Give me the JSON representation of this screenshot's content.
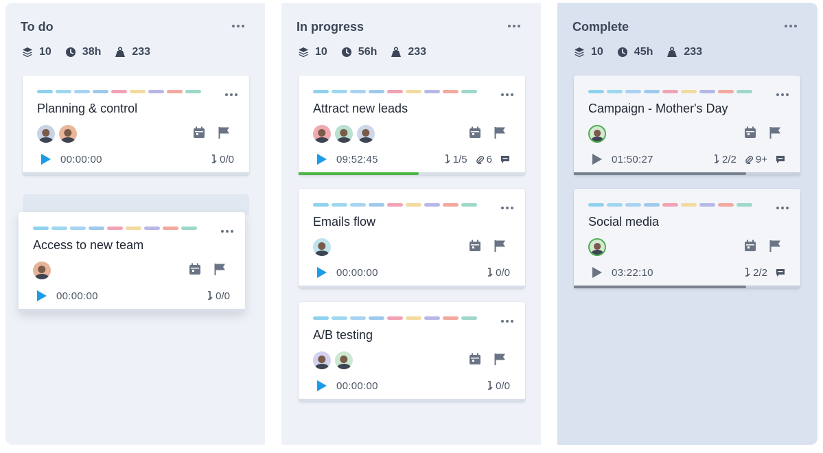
{
  "colors": {
    "play_active": "#1e9be8",
    "play_inactive": "#6b7280",
    "progress_green": "#4cb648",
    "progress_gray": "#7a8291"
  },
  "icons": {
    "stack": "layers-icon",
    "clock": "clock-icon",
    "weight": "weight-icon",
    "calendar": "calendar-icon",
    "flag": "flag-icon",
    "subtasks": "subtasks-icon",
    "attachment": "paperclip-icon",
    "comment": "comment-icon",
    "play": "play-icon",
    "more": "more-dots-icon"
  },
  "tag_colors": [
    "#8fd2ee",
    "#9fd7ef",
    "#a8d3f2",
    "#9fc9ec",
    "#f1a3b5",
    "#f3dba0",
    "#b7b8e6",
    "#f2a99e",
    "#9ed8c9"
  ],
  "columns": [
    {
      "title": "To do",
      "stats": {
        "items": "10",
        "hours": "38h",
        "weight": "233"
      },
      "cards": [
        {
          "title": "Planning & control",
          "avatars": [
            "#c9d3e6",
            "#e8b79a"
          ],
          "time": "00:00:00",
          "subtasks": "0/0",
          "play_active": true
        },
        {
          "title": "Access to new team",
          "avatars": [
            "#e6b49a"
          ],
          "time": "00:00:00",
          "subtasks": "0/0",
          "play_active": true
        }
      ]
    },
    {
      "title": "In progress",
      "stats": {
        "items": "10",
        "hours": "56h",
        "weight": "233"
      },
      "cards": [
        {
          "title": "Attract new leads",
          "avatars": [
            "#f0a9b0",
            "#b9e0d0",
            "#cfd6ea"
          ],
          "time": "09:52:45",
          "subtasks": "1/5",
          "attachments": "6",
          "comments": true,
          "play_active": true,
          "progress": 0.53
        },
        {
          "title": "Emails flow",
          "avatars": [
            "#bfe3ef"
          ],
          "time": "00:00:00",
          "subtasks": "0/0",
          "play_active": true
        },
        {
          "title": "A/B testing",
          "avatars": [
            "#d3d2ee",
            "#cde8d2"
          ],
          "time": "00:00:00",
          "subtasks": "0/0",
          "play_active": true
        }
      ]
    },
    {
      "title": "Complete",
      "stats": {
        "items": "10",
        "hours": "45h",
        "weight": "233"
      },
      "cards": [
        {
          "title": "Campaign - Mother's Day",
          "avatars": [
            "#d5e9d3"
          ],
          "time": "01:50:27",
          "subtasks": "2/2",
          "attachments": "9+",
          "comments": true,
          "play_active": false,
          "progress": 0.76
        },
        {
          "title": "Social media",
          "avatars": [
            "#d5e9d3"
          ],
          "time": "03:22:10",
          "subtasks": "2/2",
          "comments": true,
          "play_active": false,
          "progress": 0.76
        }
      ]
    }
  ]
}
